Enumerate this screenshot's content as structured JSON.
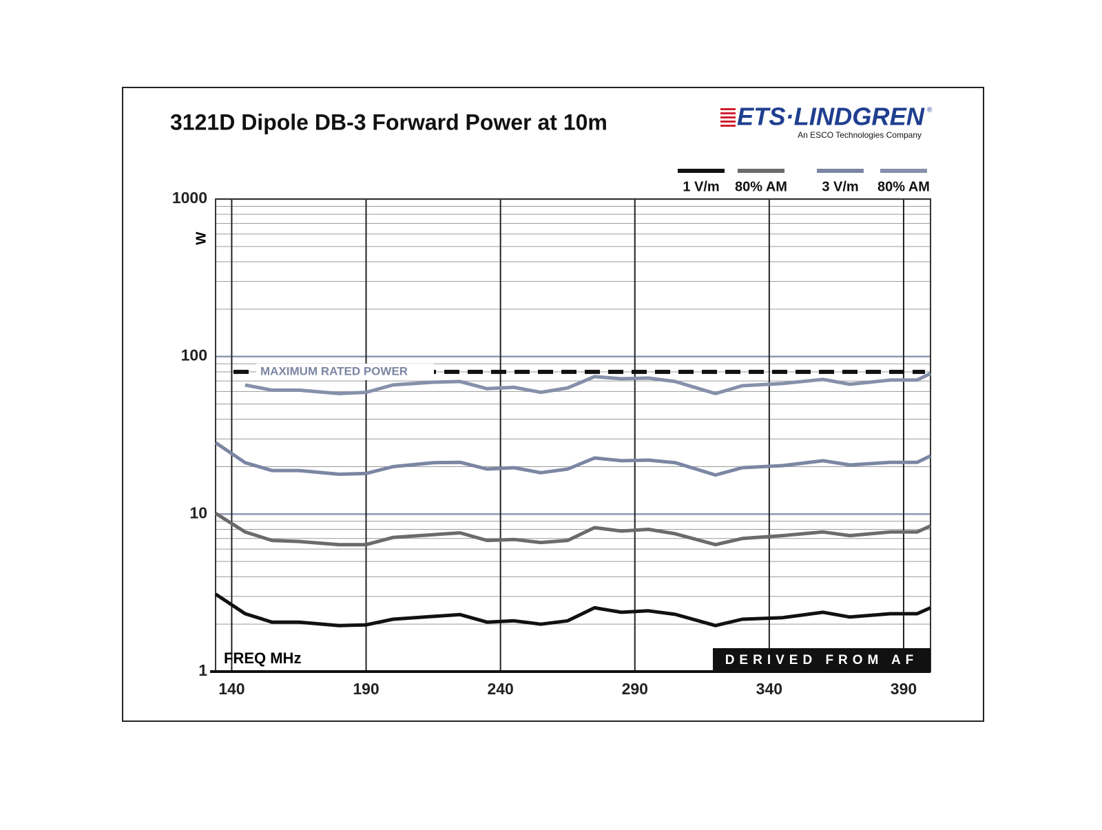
{
  "chart_data": {
    "type": "line",
    "title": "3121D Dipole DB-3 Forward Power at 10m",
    "logo": "ETS·LINDGREN",
    "logo_mark": "®",
    "logo_subtitle": "An ESCO Technologies Company",
    "y_label": "W",
    "x_label": "FREQ MHz",
    "note": "DERIVED FROM AF",
    "reference_line": {
      "value": 80,
      "label": "MAXIMUM RATED POWER"
    },
    "x": [
      134,
      145,
      155,
      165,
      180,
      190,
      200,
      215,
      225,
      235,
      245,
      255,
      265,
      275,
      285,
      295,
      305,
      320,
      330,
      345,
      360,
      370,
      385,
      395,
      400
    ],
    "series": [
      {
        "name": "1 V/m",
        "color": "#111111",
        "values": [
          3.1,
          2.33,
          2.06,
          2.06,
          1.96,
          1.98,
          2.15,
          2.24,
          2.3,
          2.06,
          2.1,
          2.0,
          2.1,
          2.54,
          2.38,
          2.43,
          2.31,
          1.96,
          2.15,
          2.2,
          2.38,
          2.22,
          2.33,
          2.33,
          2.54
        ]
      },
      {
        "name": "80% AM",
        "color": "#6b6b6b",
        "values": [
          10.1,
          7.7,
          6.8,
          6.7,
          6.4,
          6.4,
          7.1,
          7.4,
          7.6,
          6.8,
          6.9,
          6.6,
          6.8,
          8.2,
          7.8,
          8.0,
          7.5,
          6.4,
          7.0,
          7.3,
          7.7,
          7.3,
          7.7,
          7.7,
          8.4
        ]
      },
      {
        "name": "3 V/m",
        "color": "#7b86a3",
        "values": [
          28.4,
          21.2,
          18.9,
          18.9,
          17.9,
          18.1,
          20,
          21.2,
          21.3,
          19.3,
          19.7,
          18.3,
          19.3,
          22.7,
          21.8,
          22,
          21.2,
          17.7,
          19.7,
          20.3,
          21.8,
          20.5,
          21.3,
          21.3,
          23.4
        ]
      },
      {
        "name": "80% AM",
        "color": "#8690ab",
        "values": [
          null,
          66,
          61.2,
          61.2,
          58.2,
          59.3,
          66,
          68.7,
          69.4,
          62.5,
          63.8,
          59.3,
          63.2,
          74.6,
          72.3,
          73,
          69.4,
          58.2,
          65.3,
          67.4,
          71.6,
          66.7,
          70.9,
          70.9,
          78
        ]
      }
    ],
    "xlim": [
      134,
      400
    ],
    "xticks": [
      140,
      190,
      240,
      290,
      340,
      390
    ],
    "ylim": [
      1,
      1000
    ],
    "yticks": [
      1,
      10,
      100,
      1000
    ],
    "y_scale": "log",
    "y_minor_ticks": [
      2,
      3,
      4,
      5,
      6,
      7,
      8,
      9,
      20,
      30,
      40,
      50,
      60,
      70,
      80,
      90,
      200,
      300,
      400,
      500,
      600,
      700,
      800,
      900
    ],
    "grid": true
  }
}
